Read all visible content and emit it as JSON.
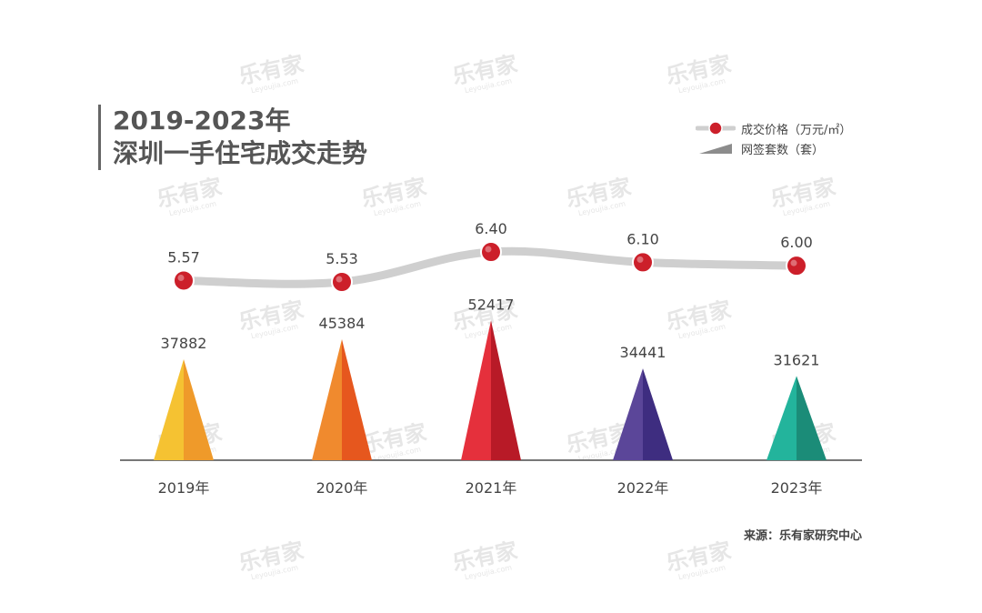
{
  "chart_data": {
    "type": "line+bar",
    "title": [
      "2019-2023年",
      "深圳一手住宅成交走势"
    ],
    "categories": [
      "2019年",
      "2020年",
      "2021年",
      "2022年",
      "2023年"
    ],
    "series": [
      {
        "name": "成交价格（万元/㎡）",
        "kind": "line",
        "values": [
          5.57,
          5.53,
          6.4,
          6.1,
          6.0
        ],
        "labels": [
          "5.57",
          "5.53",
          "6.40",
          "6.10",
          "6.00"
        ],
        "color": "#cc1f2a"
      },
      {
        "name": "网签套数（套）",
        "kind": "triangle-bar",
        "values": [
          37882,
          45384,
          52417,
          34441,
          31621
        ],
        "colors": [
          [
            "#f5c232",
            "#ef9a2a"
          ],
          [
            "#f08a2e",
            "#e6571e"
          ],
          [
            "#e5303c",
            "#b81a27"
          ],
          [
            "#5b4699",
            "#3e2d80"
          ],
          [
            "#23b49c",
            "#1b8c78"
          ]
        ]
      }
    ],
    "grid": false,
    "legend_position": "top-right"
  },
  "source": "来源：乐有家研究中心",
  "watermark": {
    "brand": "乐有家",
    "sub": "Leyoujia.com"
  }
}
